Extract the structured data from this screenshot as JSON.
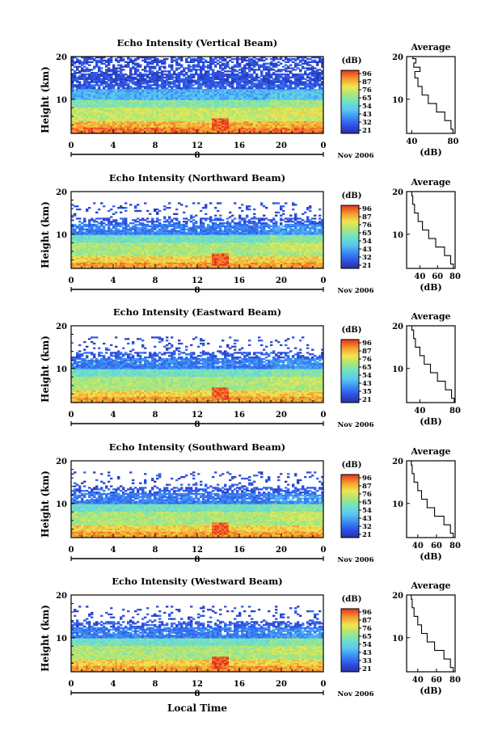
{
  "figure": {
    "bottom_axis_label": "Local Time",
    "date_label": "Nov 2006",
    "day_label": "8"
  },
  "chart_data": [
    {
      "type": "heatmap",
      "title": "Echo Intensity (Vertical Beam)",
      "ylabel": "Height (km)",
      "x_ticks": [
        "0",
        "4",
        "8",
        "12",
        "16",
        "20",
        "0"
      ],
      "y_ticks": [
        "10",
        "20"
      ],
      "xlim": [
        0,
        24
      ],
      "ylim": [
        2,
        20
      ],
      "colorbar_label": "(dB)",
      "colorbar_ticks": [
        "96",
        "87",
        "76",
        "65",
        "54",
        "43",
        "32",
        "21"
      ],
      "profile": {
        "title": "Average",
        "xlabel": "(dB)",
        "x_ticks": [
          "40",
          "80"
        ],
        "y_ticks": [
          "10",
          "20"
        ],
        "xlim": [
          35,
          82
        ],
        "heights": [
          2,
          4,
          6,
          8,
          10,
          12,
          14,
          16,
          17,
          18,
          19,
          20
        ],
        "values": [
          80,
          78,
          72,
          64,
          56,
          50,
          46,
          43,
          48,
          42,
          44,
          41
        ]
      }
    },
    {
      "type": "heatmap",
      "title": "Echo Intensity (Northward Beam)",
      "ylabel": "Height (km)",
      "x_ticks": [
        "0",
        "4",
        "8",
        "12",
        "16",
        "20",
        "0"
      ],
      "y_ticks": [
        "10",
        "20"
      ],
      "xlim": [
        0,
        24
      ],
      "ylim": [
        2,
        20
      ],
      "colorbar_label": "(dB)",
      "colorbar_ticks": [
        "96",
        "87",
        "76",
        "65",
        "54",
        "43",
        "32",
        "21"
      ],
      "profile": {
        "title": "Average",
        "xlabel": "(dB)",
        "x_ticks": [
          "40",
          "60",
          "80"
        ],
        "y_ticks": [
          "10",
          "20"
        ],
        "xlim": [
          25,
          80
        ],
        "heights": [
          2,
          4,
          6,
          8,
          10,
          12,
          14,
          16,
          18,
          20
        ],
        "values": [
          78,
          75,
          68,
          58,
          50,
          43,
          38,
          34,
          32,
          31
        ]
      }
    },
    {
      "type": "heatmap",
      "title": "Echo Intensity (Eastward Beam)",
      "ylabel": "Height (km)",
      "x_ticks": [
        "0",
        "4",
        "8",
        "12",
        "16",
        "20",
        "0"
      ],
      "y_ticks": [
        "10",
        "20"
      ],
      "xlim": [
        0,
        24
      ],
      "ylim": [
        2,
        20
      ],
      "colorbar_label": "(dB)",
      "colorbar_ticks": [
        "96",
        "87",
        "76",
        "65",
        "54",
        "43",
        "35",
        "21"
      ],
      "profile": {
        "title": "Average",
        "xlabel": "(dB)",
        "x_ticks": [
          "40",
          "80"
        ],
        "y_ticks": [
          "10",
          "20"
        ],
        "xlim": [
          25,
          80
        ],
        "heights": [
          2,
          4,
          6,
          8,
          10,
          12,
          14,
          16,
          18,
          20
        ],
        "values": [
          79,
          76,
          69,
          60,
          52,
          45,
          40,
          35,
          33,
          31
        ]
      }
    },
    {
      "type": "heatmap",
      "title": "Echo Intensity (Southward Beam)",
      "ylabel": "Height (km)",
      "x_ticks": [
        "0",
        "4",
        "8",
        "12",
        "16",
        "20",
        "0"
      ],
      "y_ticks": [
        "10",
        "20"
      ],
      "xlim": [
        0,
        24
      ],
      "ylim": [
        2,
        20
      ],
      "colorbar_label": "(dB)",
      "colorbar_ticks": [
        "96",
        "87",
        "76",
        "65",
        "54",
        "43",
        "32",
        "21"
      ],
      "profile": {
        "title": "Average",
        "xlabel": "(dB)",
        "x_ticks": [
          "40",
          "60",
          "80"
        ],
        "y_ticks": [
          "10",
          "20"
        ],
        "xlim": [
          28,
          80
        ],
        "heights": [
          2,
          4,
          6,
          8,
          10,
          12,
          14,
          16,
          18,
          20
        ],
        "values": [
          78,
          75,
          68,
          58,
          50,
          44,
          40,
          36,
          34,
          33
        ]
      }
    },
    {
      "type": "heatmap",
      "title": "Echo Intensity (Westward Beam)",
      "ylabel": "Height (km)",
      "x_ticks": [
        "0",
        "4",
        "8",
        "12",
        "16",
        "20",
        "0"
      ],
      "y_ticks": [
        "10",
        "20"
      ],
      "xlim": [
        0,
        24
      ],
      "ylim": [
        2,
        20
      ],
      "colorbar_label": "(dB)",
      "colorbar_ticks": [
        "96",
        "87",
        "76",
        "65",
        "54",
        "43",
        "33",
        "21"
      ],
      "profile": {
        "title": "Average",
        "xlabel": "(dB)",
        "x_ticks": [
          "40",
          "60",
          "80"
        ],
        "y_ticks": [
          "10",
          "20"
        ],
        "xlim": [
          28,
          80
        ],
        "heights": [
          2,
          4,
          6,
          8,
          10,
          12,
          14,
          16,
          18,
          20
        ],
        "values": [
          78,
          75,
          68,
          58,
          50,
          44,
          40,
          36,
          34,
          33
        ]
      }
    }
  ]
}
